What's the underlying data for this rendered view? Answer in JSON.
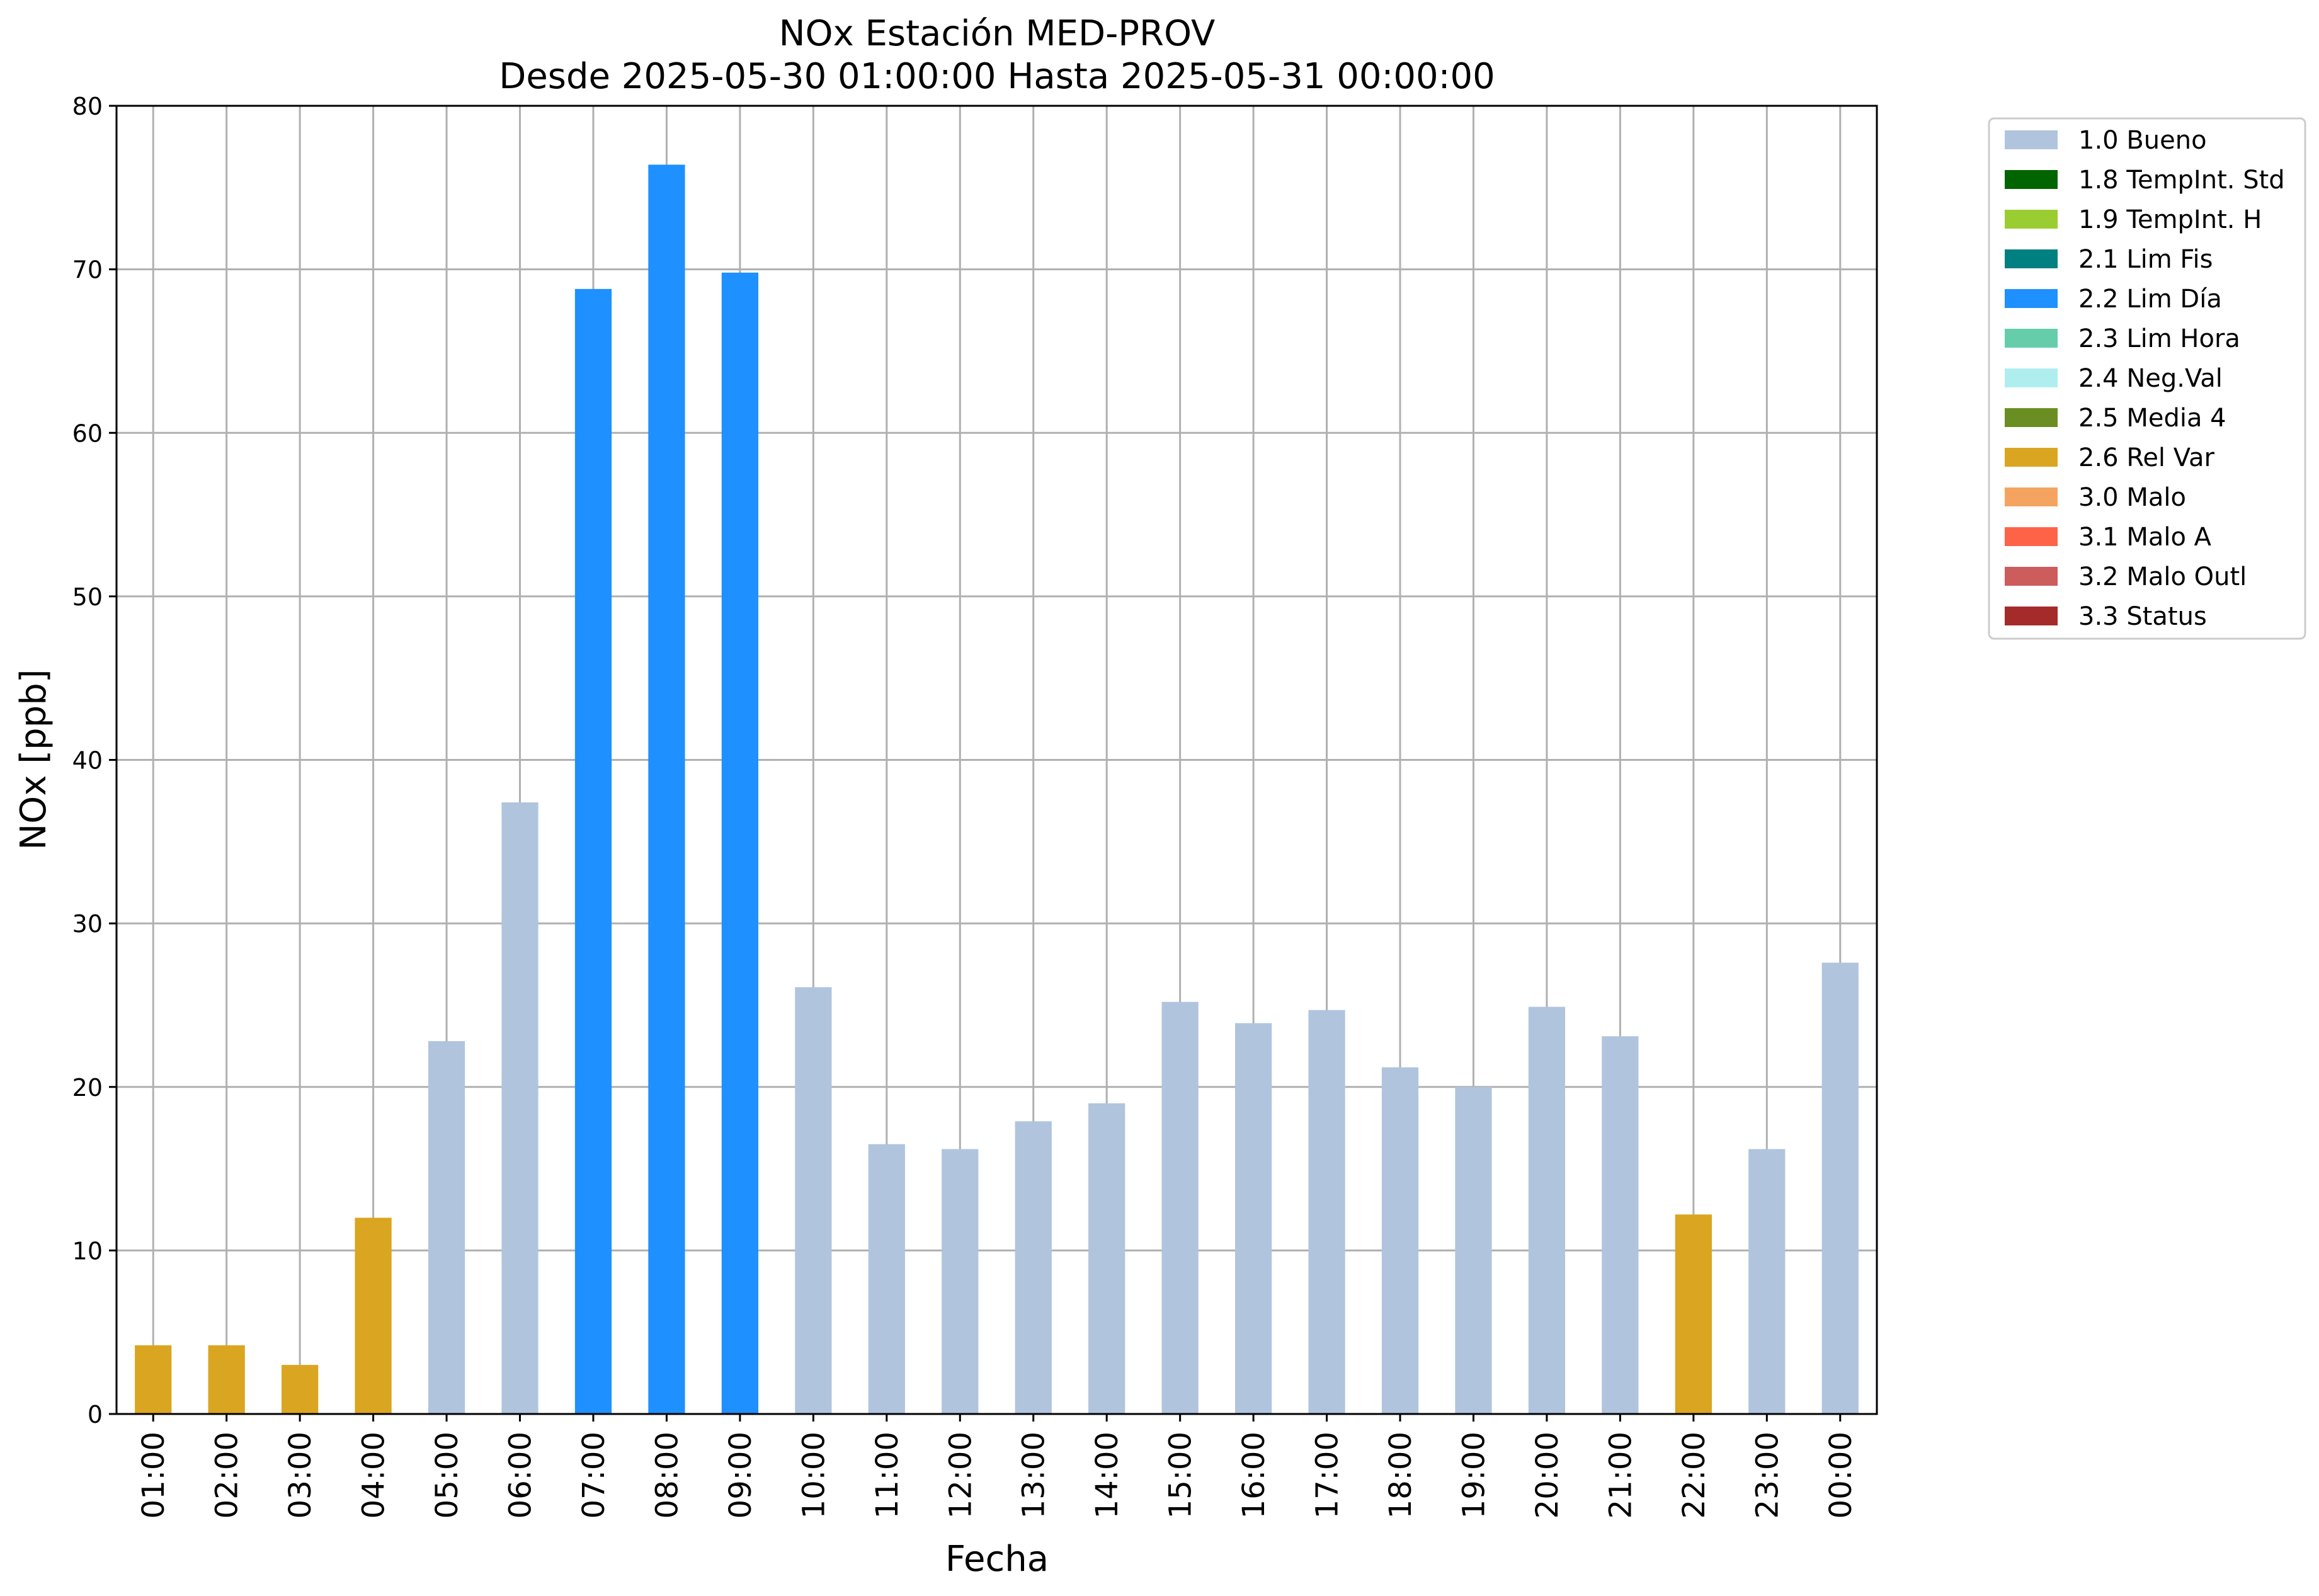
{
  "chart_data": {
    "type": "bar",
    "title": "NOx Estación MED-PROV",
    "subtitle": "Desde 2025-05-30 01:00:00 Hasta 2025-05-31 00:00:00",
    "xlabel": "Fecha",
    "ylabel": "NOx [ppb]",
    "ylim": [
      0,
      80
    ],
    "yticks": [
      "0",
      "10",
      "20",
      "30",
      "40",
      "50",
      "60",
      "70",
      "80"
    ],
    "grid": true,
    "legend_position": "outside-top-right",
    "categories": [
      "01:00",
      "02:00",
      "03:00",
      "04:00",
      "05:00",
      "06:00",
      "07:00",
      "08:00",
      "09:00",
      "10:00",
      "11:00",
      "12:00",
      "13:00",
      "14:00",
      "15:00",
      "16:00",
      "17:00",
      "18:00",
      "19:00",
      "20:00",
      "21:00",
      "22:00",
      "23:00",
      "00:00"
    ],
    "values": [
      4.2,
      4.2,
      3.0,
      12.0,
      22.8,
      37.4,
      68.8,
      76.4,
      69.8,
      26.1,
      16.5,
      16.2,
      17.9,
      19.0,
      25.2,
      23.9,
      24.7,
      21.2,
      20.0,
      24.9,
      23.1,
      12.2,
      16.2,
      27.6
    ],
    "flags": [
      "2.6 Rel Var",
      "2.6 Rel Var",
      "2.6 Rel Var",
      "2.6 Rel Var",
      "1.0 Bueno",
      "1.0 Bueno",
      "2.2 Lim Día",
      "2.2 Lim Día",
      "2.2 Lim Día",
      "1.0 Bueno",
      "1.0 Bueno",
      "1.0 Bueno",
      "1.0 Bueno",
      "1.0 Bueno",
      "1.0 Bueno",
      "1.0 Bueno",
      "1.0 Bueno",
      "1.0 Bueno",
      "1.0 Bueno",
      "1.0 Bueno",
      "1.0 Bueno",
      "2.6 Rel Var",
      "1.0 Bueno",
      "1.0 Bueno"
    ],
    "legend": [
      {
        "label": "1.0 Bueno",
        "color": "#b0c4de"
      },
      {
        "label": "1.8 TempInt. Std",
        "color": "#006400"
      },
      {
        "label": "1.9 TempInt. H",
        "color": "#9acd32"
      },
      {
        "label": "2.1 Lim Fis",
        "color": "#008080"
      },
      {
        "label": "2.2 Lim Día",
        "color": "#1e90ff"
      },
      {
        "label": "2.3 Lim Hora",
        "color": "#66cdaa"
      },
      {
        "label": "2.4 Neg.Val",
        "color": "#afeeee"
      },
      {
        "label": "2.5 Media 4",
        "color": "#6b8e23"
      },
      {
        "label": "2.6 Rel Var",
        "color": "#daa520"
      },
      {
        "label": "3.0 Malo",
        "color": "#f4a460"
      },
      {
        "label": "3.1 Malo A",
        "color": "#ff6347"
      },
      {
        "label": "3.2 Malo Outl",
        "color": "#cd5c5c"
      },
      {
        "label": "3.3 Status",
        "color": "#a52a2a"
      }
    ]
  }
}
